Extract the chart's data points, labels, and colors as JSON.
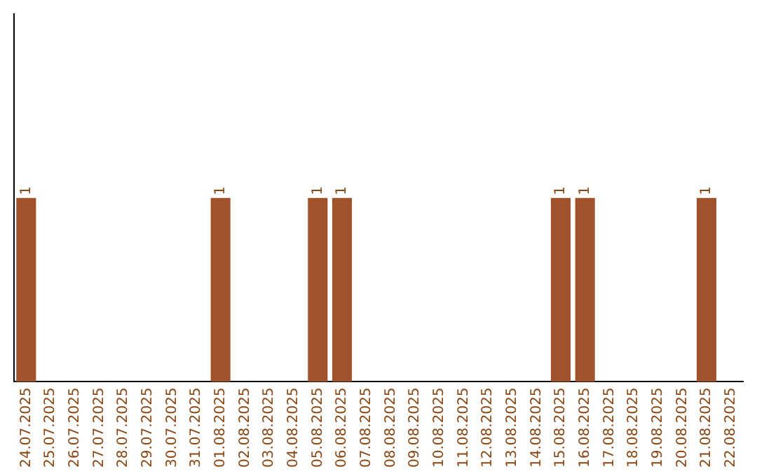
{
  "chart_data": {
    "type": "bar",
    "categories": [
      "24.07.2025",
      "25.07.2025",
      "26.07.2025",
      "27.07.2025",
      "28.07.2025",
      "29.07.2025",
      "30.07.2025",
      "31.07.2025",
      "01.08.2025",
      "02.08.2025",
      "03.08.2025",
      "04.08.2025",
      "05.08.2025",
      "06.08.2025",
      "07.08.2025",
      "08.08.2025",
      "09.08.2025",
      "10.08.2025",
      "11.08.2025",
      "12.08.2025",
      "13.08.2025",
      "14.08.2025",
      "15.08.2025",
      "16.08.2025",
      "17.08.2025",
      "18.08.2025",
      "19.08.2025",
      "20.08.2025",
      "21.08.2025",
      "22.08.2025"
    ],
    "values": [
      1,
      0,
      0,
      0,
      0,
      0,
      0,
      0,
      1,
      0,
      0,
      0,
      1,
      1,
      0,
      0,
      0,
      0,
      0,
      0,
      0,
      0,
      1,
      1,
      0,
      0,
      0,
      0,
      1,
      0
    ],
    "value_labels": [
      "1",
      null,
      null,
      null,
      null,
      null,
      null,
      null,
      "1",
      null,
      null,
      null,
      "1",
      "1",
      null,
      null,
      null,
      null,
      null,
      null,
      null,
      null,
      "1",
      "1",
      null,
      null,
      null,
      null,
      "1",
      null
    ],
    "color": "#a0522d",
    "ylim": [
      0,
      2
    ],
    "grid": false,
    "legend": false,
    "tick_labels": "x"
  }
}
